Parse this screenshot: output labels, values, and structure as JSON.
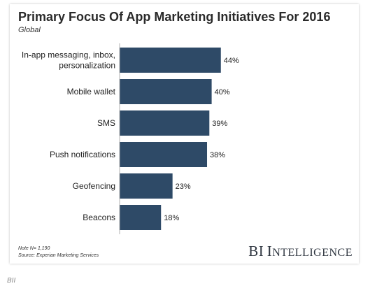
{
  "chart_data": {
    "type": "bar",
    "orientation": "horizontal",
    "title": "Primary Focus Of App Marketing Initiatives For 2016",
    "subtitle": "Global",
    "categories": [
      [
        "In-app messaging, inbox,",
        "personalization"
      ],
      [
        "Mobile wallet"
      ],
      [
        "SMS"
      ],
      [
        "Push notifications"
      ],
      [
        "Geofencing"
      ],
      [
        "Beacons"
      ]
    ],
    "values": [
      44,
      40,
      39,
      38,
      23,
      18
    ],
    "data_labels": [
      "44%",
      "40%",
      "39%",
      "38%",
      "23%",
      "18%"
    ],
    "value_unit": "%",
    "xlim": [
      0,
      100
    ],
    "grid": false,
    "legend": "none",
    "bar_color": "#2e4a67"
  },
  "notes": {
    "n": "Note N= 1,190",
    "source": "Source: Experian Marketing Services"
  },
  "brand": {
    "first": "BI",
    "second": "I",
    "rest": "NTELLIGENCE"
  },
  "footer": "BII"
}
